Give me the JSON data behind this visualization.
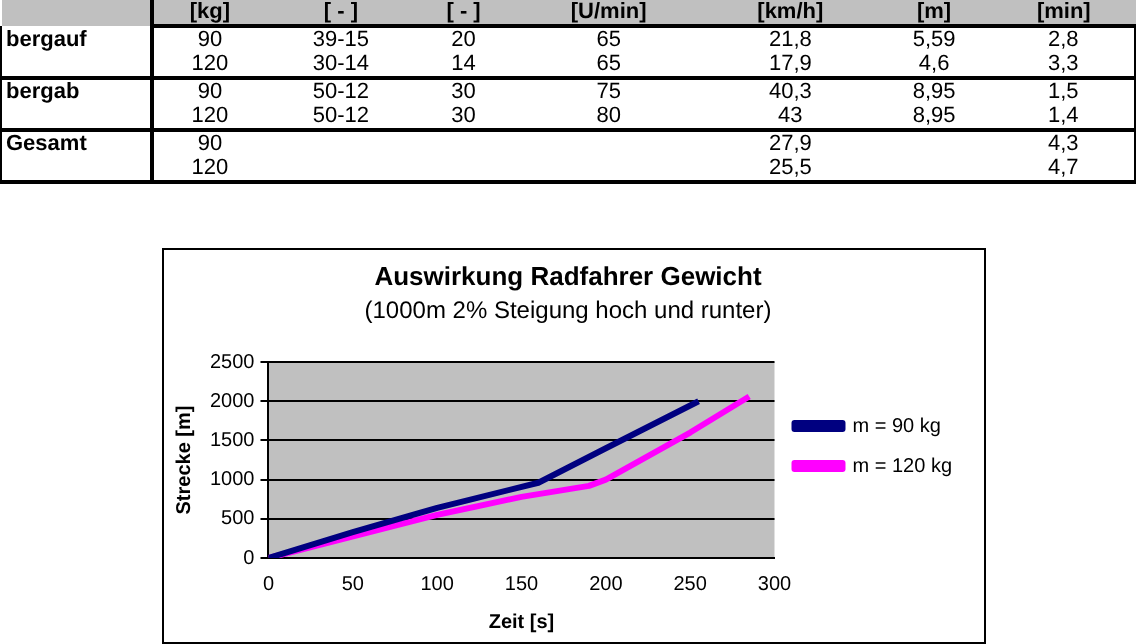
{
  "chart_data": [
    {
      "type": "other",
      "categories": [
        "[kg]",
        "[ - ]",
        "[ - ]",
        "[U/min]",
        "[km/h]",
        "[m]",
        "[min]"
      ],
      "y_categories": [
        "bergauf",
        null,
        "bergab",
        null,
        "Gesamt",
        null
      ],
      "cell_labels": [
        [
          "90",
          "39-15",
          "20",
          "65",
          "21,8",
          "5,59",
          "2,8"
        ],
        [
          "120",
          "30-14",
          "14",
          "65",
          "17,9",
          "4,6",
          "3,3"
        ],
        [
          "90",
          "50-12",
          "30",
          "75",
          "40,3",
          "8,95",
          "1,5"
        ],
        [
          "120",
          "50-12",
          "30",
          "80",
          "43",
          "8,95",
          "1,4"
        ],
        [
          "90",
          null,
          null,
          null,
          "27,9",
          null,
          "4,3"
        ],
        [
          "120",
          null,
          null,
          null,
          "25,5",
          null,
          "4,7"
        ]
      ]
    },
    {
      "type": "line",
      "title": "Auswirkung Radfahrer Gewicht",
      "subtitle": "(1000m 2% Steigung hoch und runter)",
      "xlabel": "Zeit [s]",
      "ylabel": "Strecke [m]",
      "xlim": [
        0,
        300
      ],
      "xticks": [
        0,
        50,
        100,
        150,
        200,
        250,
        300
      ],
      "ylim": [
        0,
        2500
      ],
      "yticks": [
        0,
        500,
        1000,
        1500,
        2000,
        2500
      ],
      "grid": "y",
      "legend": "right",
      "marker": "none",
      "series": [
        {
          "name": "m = 90 kg",
          "color": "#000080",
          "x": [
            0,
            50,
            100,
            160,
            200,
            255
          ],
          "values": [
            0,
            330,
            640,
            960,
            1400,
            2000
          ]
        },
        {
          "name": "m = 120 kg",
          "color": "#ff00ff",
          "x": [
            0,
            100,
            150,
            190,
            200,
            250,
            285
          ],
          "values": [
            0,
            550,
            780,
            920,
            1000,
            1600,
            2060
          ]
        }
      ]
    }
  ]
}
